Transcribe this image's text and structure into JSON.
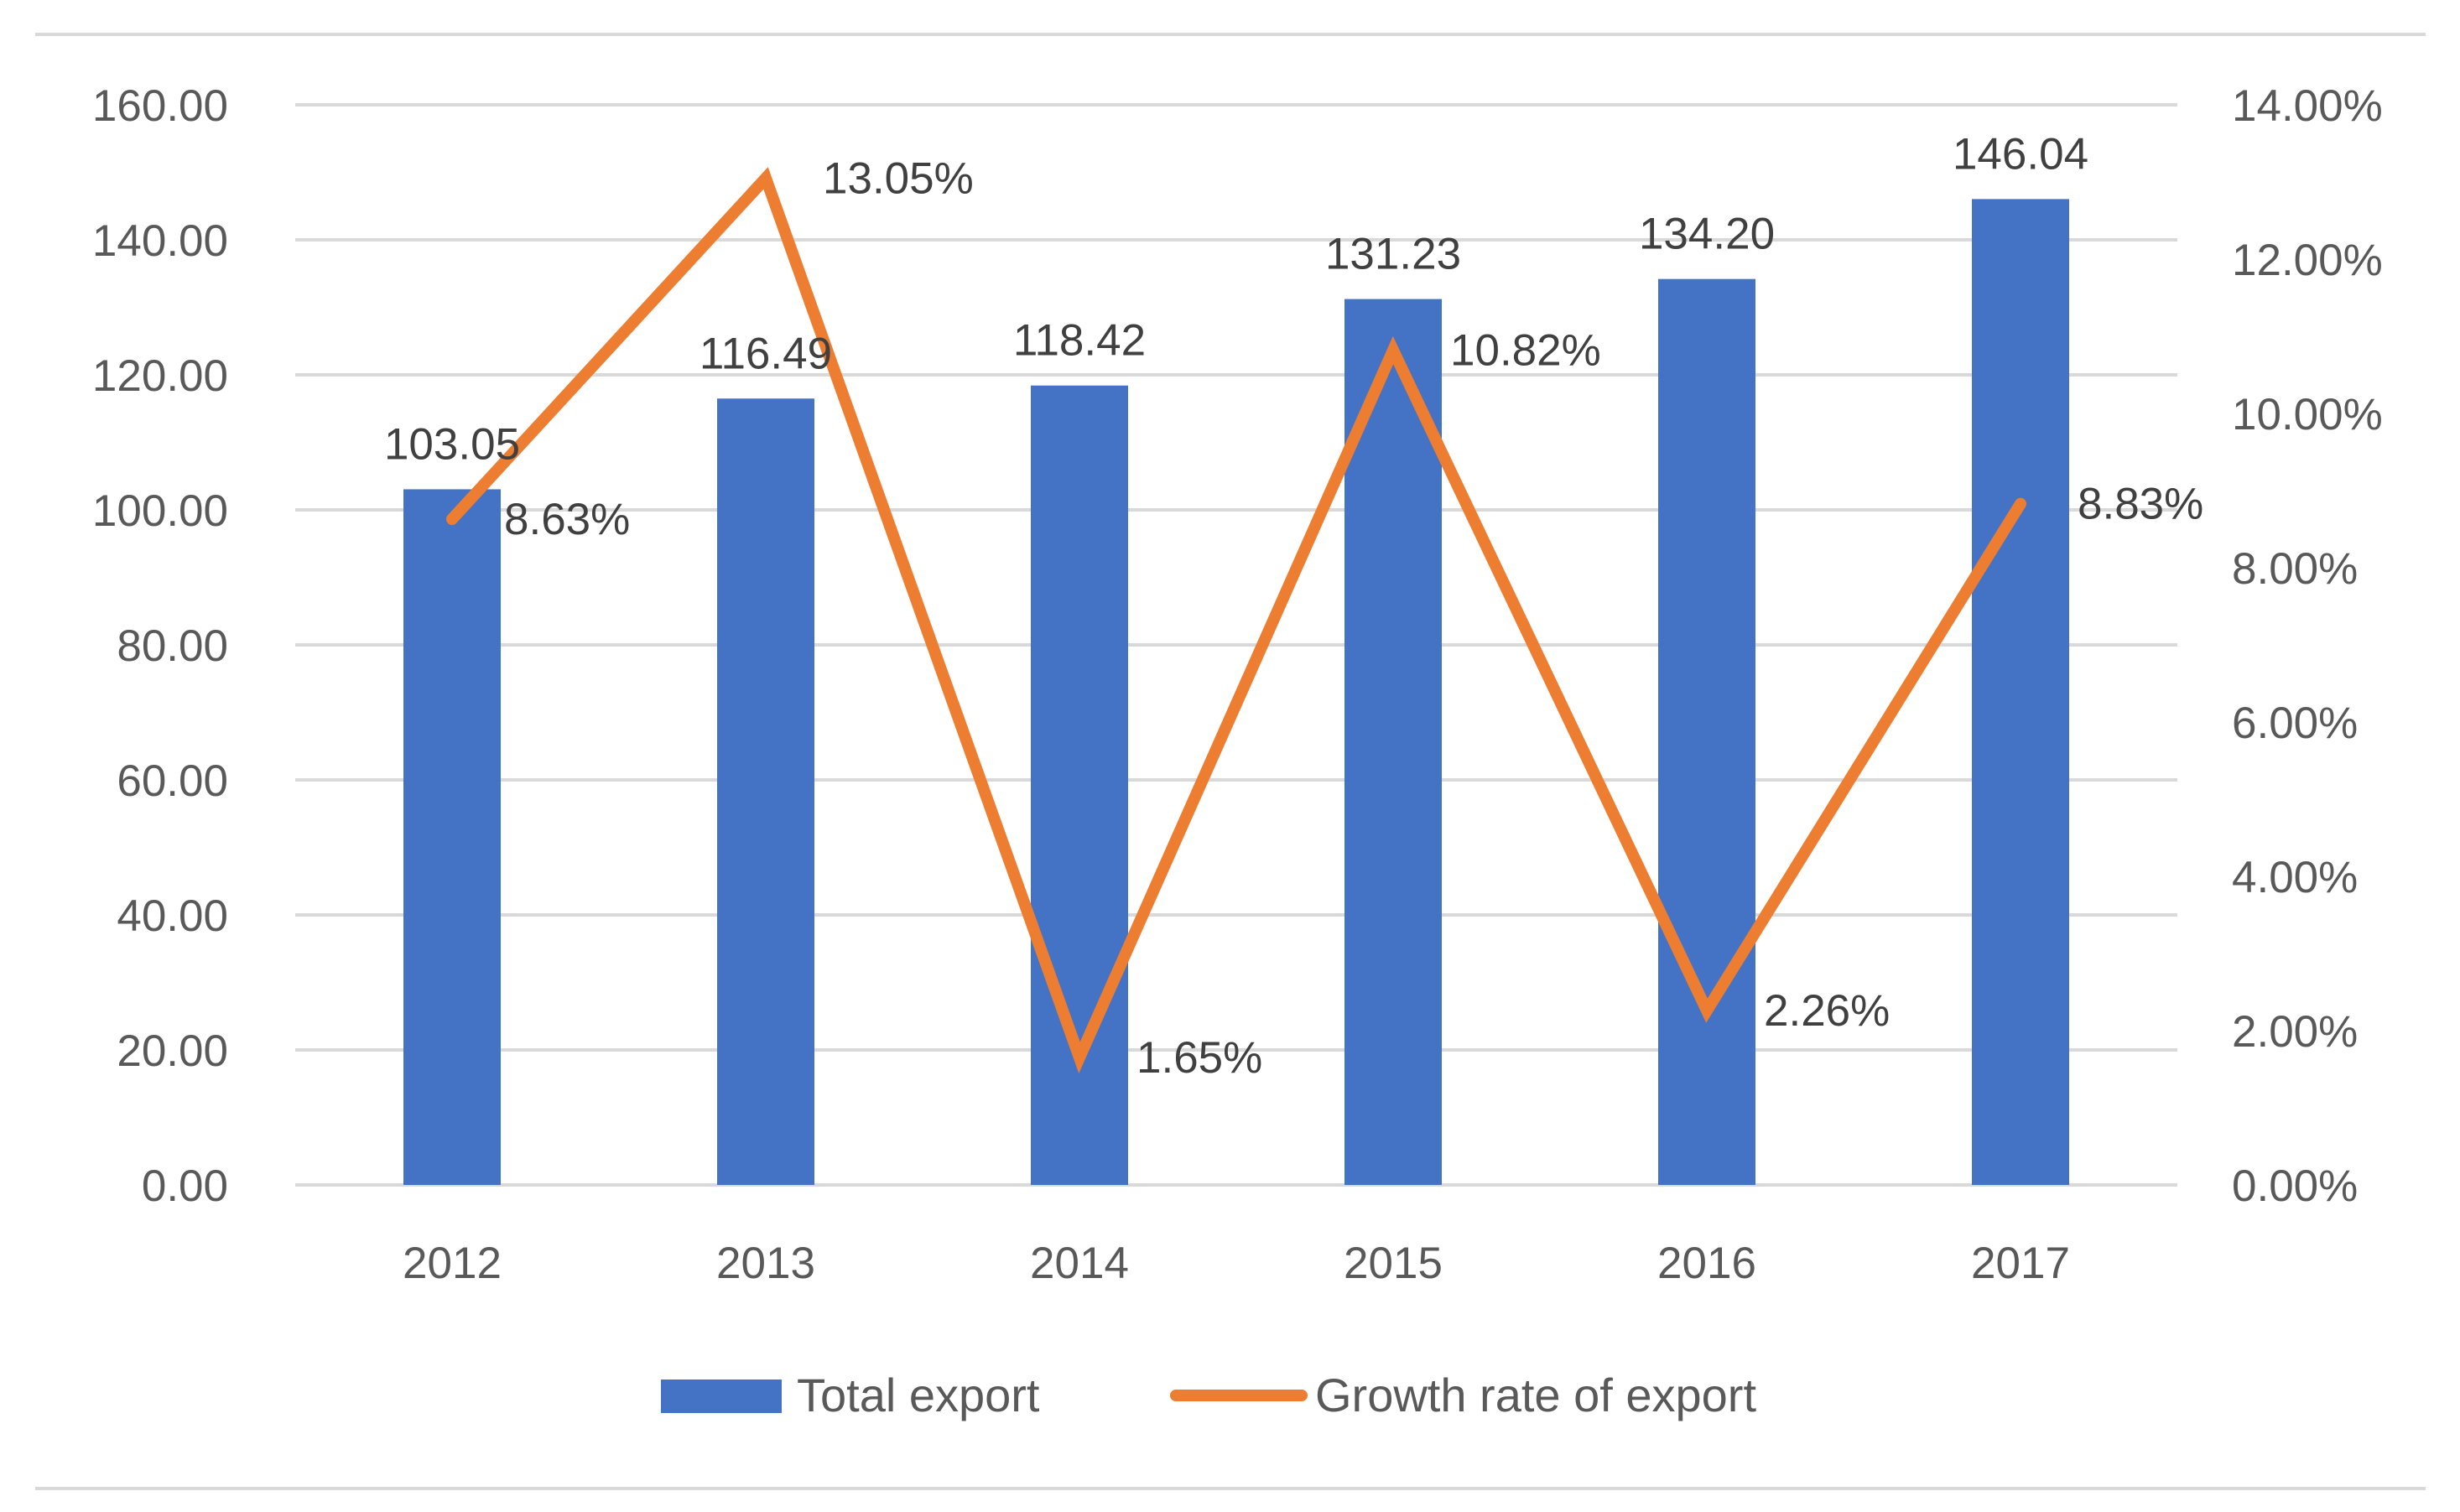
{
  "chart_data": {
    "type": "bar",
    "categories": [
      "2012",
      "2013",
      "2014",
      "2015",
      "2016",
      "2017"
    ],
    "series": [
      {
        "name": "Total export",
        "type": "bar",
        "axis": "left",
        "values": [
          103.05,
          116.49,
          118.42,
          131.23,
          134.2,
          146.04
        ],
        "labels": [
          "103.05",
          "116.49",
          "118.42",
          "131.23",
          "134.20",
          "146.04"
        ],
        "color": "#4472C4"
      },
      {
        "name": "Growth rate of export",
        "type": "line",
        "axis": "right",
        "values": [
          8.63,
          13.05,
          1.65,
          10.82,
          2.26,
          8.83
        ],
        "labels": [
          "8.63%",
          "13.05%",
          "1.65%",
          "10.82%",
          "2.26%",
          "8.83%"
        ],
        "color": "#ED7D31"
      }
    ],
    "y_left": {
      "range": [
        0,
        160
      ],
      "ticks": [
        "0.00",
        "20.00",
        "40.00",
        "60.00",
        "80.00",
        "100.00",
        "120.00",
        "140.00",
        "160.00"
      ]
    },
    "y_right": {
      "range": [
        0,
        14
      ],
      "unit": "%",
      "ticks": [
        "0.00%",
        "2.00%",
        "4.00%",
        "6.00%",
        "8.00%",
        "10.00%",
        "12.00%",
        "14.00%"
      ]
    },
    "grid": true,
    "legend_position": "bottom",
    "gridline_color": "#D9D9D9"
  }
}
